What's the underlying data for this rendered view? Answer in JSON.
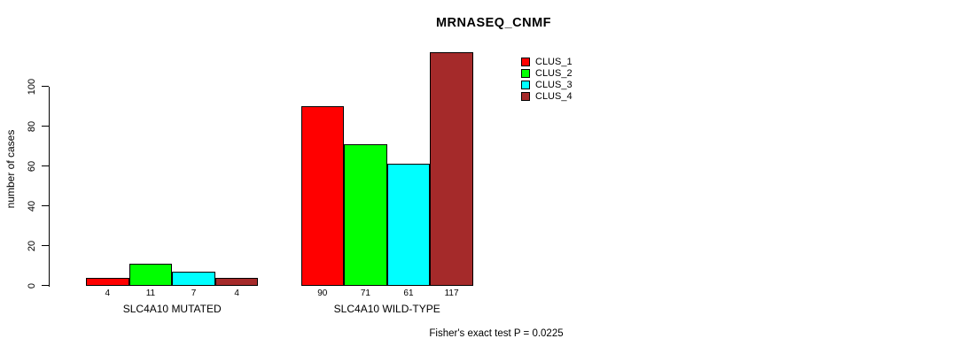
{
  "chart_data": {
    "type": "bar",
    "title": "MRNASEQ_CNMF",
    "xlabel": "",
    "ylabel": "number of cases",
    "categories": [
      "SLC4A10 MUTATED",
      "SLC4A10 WILD-TYPE"
    ],
    "series": [
      {
        "name": "CLUS_1",
        "color": "#FF0000",
        "values": [
          4,
          90
        ]
      },
      {
        "name": "CLUS_2",
        "color": "#00FF00",
        "values": [
          11,
          71
        ]
      },
      {
        "name": "CLUS_3",
        "color": "#00FFFF",
        "values": [
          7,
          61
        ]
      },
      {
        "name": "CLUS_4",
        "color": "#A52A2A",
        "values": [
          4,
          117
        ]
      }
    ],
    "bar_value_labels": [
      [
        4,
        11,
        7,
        4
      ],
      [
        90,
        71,
        61,
        117
      ]
    ],
    "yticks": [
      0,
      20,
      40,
      60,
      80,
      100
    ],
    "ylim": [
      0,
      118
    ],
    "grid": false,
    "legend_position": "top-right",
    "annotation": "Fisher's exact test P = 0.0225"
  }
}
